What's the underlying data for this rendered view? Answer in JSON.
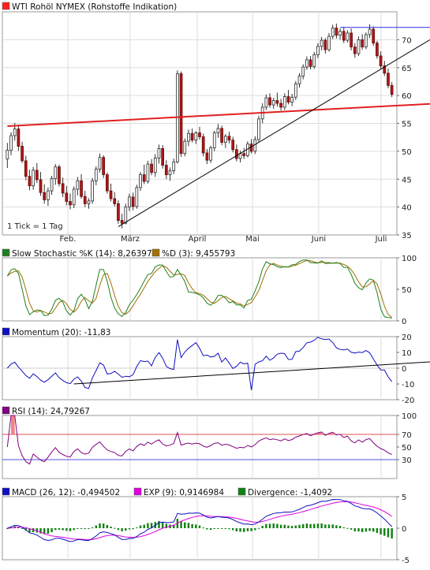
{
  "chart_data": [
    {
      "type": "candlestick",
      "title": "WTI Rohöl NYMEX (Rohstoffe Indikation)",
      "legend_color": "#ff2020",
      "note": "1 Tick = 1 Tag",
      "ylim": [
        35,
        75
      ],
      "y_ticks": [
        35,
        40,
        45,
        50,
        55,
        60,
        65,
        70
      ],
      "month_labels": [
        "Feb.",
        "März",
        "April",
        "Mai",
        "Juni",
        "Juli"
      ],
      "candles": [
        [
          48.6,
          51.5,
          47.0,
          50.2
        ],
        [
          50.2,
          53.4,
          49.3,
          52.8
        ],
        [
          52.8,
          55.1,
          51.9,
          54.0
        ],
        [
          54.0,
          54.8,
          50.1,
          50.9
        ],
        [
          50.9,
          51.7,
          47.9,
          48.3
        ],
        [
          48.3,
          49.2,
          44.8,
          45.5
        ],
        [
          45.5,
          46.7,
          43.0,
          43.8
        ],
        [
          43.8,
          47.2,
          43.1,
          46.6
        ],
        [
          46.6,
          47.9,
          44.3,
          44.9
        ],
        [
          44.9,
          46.3,
          42.0,
          42.6
        ],
        [
          42.6,
          44.1,
          40.6,
          41.3
        ],
        [
          41.3,
          43.5,
          40.2,
          42.9
        ],
        [
          42.9,
          45.6,
          42.2,
          45.1
        ],
        [
          45.1,
          47.7,
          44.0,
          47.2
        ],
        [
          47.2,
          47.6,
          43.7,
          44.2
        ],
        [
          44.2,
          45.3,
          41.8,
          42.5
        ],
        [
          42.5,
          43.8,
          40.3,
          41.0
        ],
        [
          41.0,
          42.4,
          39.6,
          40.4
        ],
        [
          40.4,
          43.7,
          39.8,
          43.2
        ],
        [
          43.2,
          45.4,
          42.1,
          44.7
        ],
        [
          44.7,
          45.9,
          41.5,
          41.9
        ],
        [
          41.9,
          42.9,
          40.0,
          40.6
        ],
        [
          40.6,
          41.6,
          39.7,
          41.1
        ],
        [
          41.1,
          45.2,
          40.6,
          44.7
        ],
        [
          44.7,
          47.3,
          43.9,
          46.8
        ],
        [
          46.8,
          49.6,
          46.2,
          48.9
        ],
        [
          48.9,
          49.3,
          45.2,
          45.8
        ],
        [
          45.8,
          46.2,
          42.4,
          42.9
        ],
        [
          42.9,
          44.2,
          41.0,
          41.5
        ],
        [
          41.5,
          42.7,
          40.1,
          40.6
        ],
        [
          40.6,
          41.2,
          37.0,
          37.6
        ],
        [
          37.6,
          38.8,
          36.2,
          37.1
        ],
        [
          37.1,
          40.6,
          36.9,
          40.0
        ],
        [
          40.0,
          42.4,
          39.3,
          41.8
        ],
        [
          41.8,
          42.6,
          39.4,
          40.1
        ],
        [
          40.1,
          44.0,
          39.7,
          43.5
        ],
        [
          43.5,
          46.3,
          42.9,
          45.8
        ],
        [
          45.8,
          47.6,
          44.1,
          44.6
        ],
        [
          44.6,
          48.3,
          44.2,
          47.7
        ],
        [
          47.7,
          48.6,
          45.7,
          46.2
        ],
        [
          46.2,
          49.5,
          45.4,
          48.8
        ],
        [
          48.8,
          51.2,
          47.8,
          50.5
        ],
        [
          50.5,
          51.1,
          46.9,
          47.5
        ],
        [
          47.5,
          48.4,
          45.0,
          45.8
        ],
        [
          45.8,
          47.1,
          44.7,
          46.5
        ],
        [
          46.5,
          48.7,
          45.9,
          48.1
        ],
        [
          48.1,
          64.5,
          47.8,
          63.9
        ],
        [
          63.9,
          64.3,
          49.0,
          49.6
        ],
        [
          49.6,
          52.3,
          49.1,
          51.8
        ],
        [
          51.8,
          53.9,
          50.9,
          53.2
        ],
        [
          53.2,
          54.1,
          51.6,
          52.0
        ],
        [
          52.0,
          53.6,
          51.3,
          53.3
        ],
        [
          53.3,
          54.4,
          52.1,
          52.6
        ],
        [
          52.6,
          53.2,
          49.1,
          49.7
        ],
        [
          49.7,
          50.4,
          47.7,
          48.4
        ],
        [
          48.4,
          51.0,
          47.9,
          50.6
        ],
        [
          50.6,
          53.7,
          50.0,
          53.3
        ],
        [
          53.3,
          54.9,
          52.4,
          54.1
        ],
        [
          54.1,
          54.6,
          51.1,
          51.6
        ],
        [
          51.6,
          53.1,
          50.6,
          52.7
        ],
        [
          52.7,
          53.5,
          51.4,
          52.0
        ],
        [
          52.0,
          52.6,
          49.8,
          50.3
        ],
        [
          50.3,
          51.2,
          48.2,
          48.7
        ],
        [
          48.7,
          50.1,
          48.0,
          49.6
        ],
        [
          49.6,
          50.6,
          48.6,
          49.2
        ],
        [
          49.2,
          51.8,
          48.9,
          51.3
        ],
        [
          51.3,
          52.2,
          49.6,
          50.0
        ],
        [
          50.0,
          52.7,
          49.5,
          52.1
        ],
        [
          52.1,
          56.4,
          51.7,
          55.8
        ],
        [
          55.8,
          58.6,
          55.0,
          57.9
        ],
        [
          57.9,
          60.2,
          57.4,
          59.6
        ],
        [
          59.6,
          60.4,
          57.8,
          58.3
        ],
        [
          58.3,
          59.6,
          57.6,
          59.1
        ],
        [
          59.1,
          60.5,
          58.0,
          58.6
        ],
        [
          58.6,
          59.4,
          57.3,
          57.9
        ],
        [
          57.9,
          60.4,
          57.4,
          59.8
        ],
        [
          59.8,
          61.0,
          58.4,
          58.8
        ],
        [
          58.8,
          60.3,
          58.1,
          59.7
        ],
        [
          59.7,
          62.6,
          59.2,
          62.1
        ],
        [
          62.1,
          64.0,
          61.4,
          63.5
        ],
        [
          63.5,
          65.6,
          62.9,
          65.1
        ],
        [
          65.1,
          67.0,
          64.6,
          66.4
        ],
        [
          66.4,
          67.1,
          64.7,
          65.2
        ],
        [
          65.2,
          67.8,
          64.8,
          67.3
        ],
        [
          67.3,
          69.4,
          66.7,
          68.8
        ],
        [
          68.8,
          70.5,
          68.1,
          69.9
        ],
        [
          69.9,
          70.3,
          67.5,
          68.2
        ],
        [
          68.2,
          71.2,
          67.9,
          70.6
        ],
        [
          70.6,
          72.7,
          70.1,
          72.1
        ],
        [
          72.1,
          72.9,
          70.2,
          70.8
        ],
        [
          70.8,
          72.0,
          70.0,
          71.5
        ],
        [
          71.5,
          72.3,
          69.4,
          69.9
        ],
        [
          69.9,
          71.7,
          69.5,
          71.2
        ],
        [
          71.2,
          72.0,
          68.1,
          68.7
        ],
        [
          68.7,
          69.4,
          66.8,
          67.5
        ],
        [
          67.5,
          70.6,
          67.1,
          70.0
        ],
        [
          70.0,
          71.0,
          68.2,
          68.7
        ],
        [
          68.7,
          71.3,
          68.3,
          70.9
        ],
        [
          70.9,
          72.8,
          70.3,
          71.9
        ],
        [
          71.9,
          72.4,
          68.9,
          69.4
        ],
        [
          69.4,
          69.8,
          66.6,
          67.1
        ],
        [
          67.1,
          67.9,
          64.8,
          65.3
        ],
        [
          65.3,
          66.2,
          63.5,
          64.0
        ],
        [
          64.0,
          64.8,
          61.3,
          61.8
        ],
        [
          61.8,
          62.4,
          59.7,
          60.2
        ]
      ],
      "lines": [
        {
          "name": "support-upper",
          "color": "#e02020",
          "from": [
            0,
            54.5
          ],
          "to": [
            104,
            58.5
          ]
        },
        {
          "name": "uptrend",
          "color": "#000000",
          "from": [
            30,
            36.5
          ],
          "to": [
            118,
            70.0
          ]
        },
        {
          "name": "resistance-top",
          "color": "#3030e0",
          "from": [
            90,
            72.2
          ],
          "to": [
            118,
            72.2
          ]
        }
      ]
    },
    {
      "type": "line",
      "title": "Slow Stochastic %K (14): 8,263977",
      "series": [
        {
          "name": "Slow Stochastic %K (14): 8,263977",
          "color": "#208020",
          "values": []
        },
        {
          "name": "%D (3): 9,455793",
          "color": "#a07000",
          "values": []
        }
      ],
      "ylim": [
        0,
        100
      ],
      "y_ticks": [
        0,
        50,
        100
      ]
    },
    {
      "type": "line",
      "title": "Momentum (20): -11,83",
      "series": [
        {
          "name": "Momentum (20): -11,83",
          "color": "#1010c0",
          "values": []
        }
      ],
      "ylim": [
        -20,
        20
      ],
      "y_ticks": [
        -20,
        -10,
        0,
        10,
        20
      ]
    },
    {
      "type": "line",
      "title": "RSI (14): 24,79267",
      "series": [
        {
          "name": "RSI (14): 24,79267",
          "color": "#800080",
          "values": []
        }
      ],
      "ylim": [
        0,
        100
      ],
      "y_ticks": [
        30,
        50,
        70,
        100
      ]
    },
    {
      "type": "line",
      "title": "MACD (26, 12): -0,494502",
      "series": [
        {
          "name": "MACD (26, 12): -0,494502",
          "color": "#1010c0",
          "values": []
        },
        {
          "name": "EXP (9): 0,9146984",
          "color": "#e000e0",
          "values": []
        },
        {
          "name": "Divergence: -1,4092",
          "color": "#108010",
          "values": []
        }
      ],
      "ylim": [
        -5,
        5
      ],
      "y_ticks": [
        -5,
        0,
        5
      ]
    }
  ]
}
